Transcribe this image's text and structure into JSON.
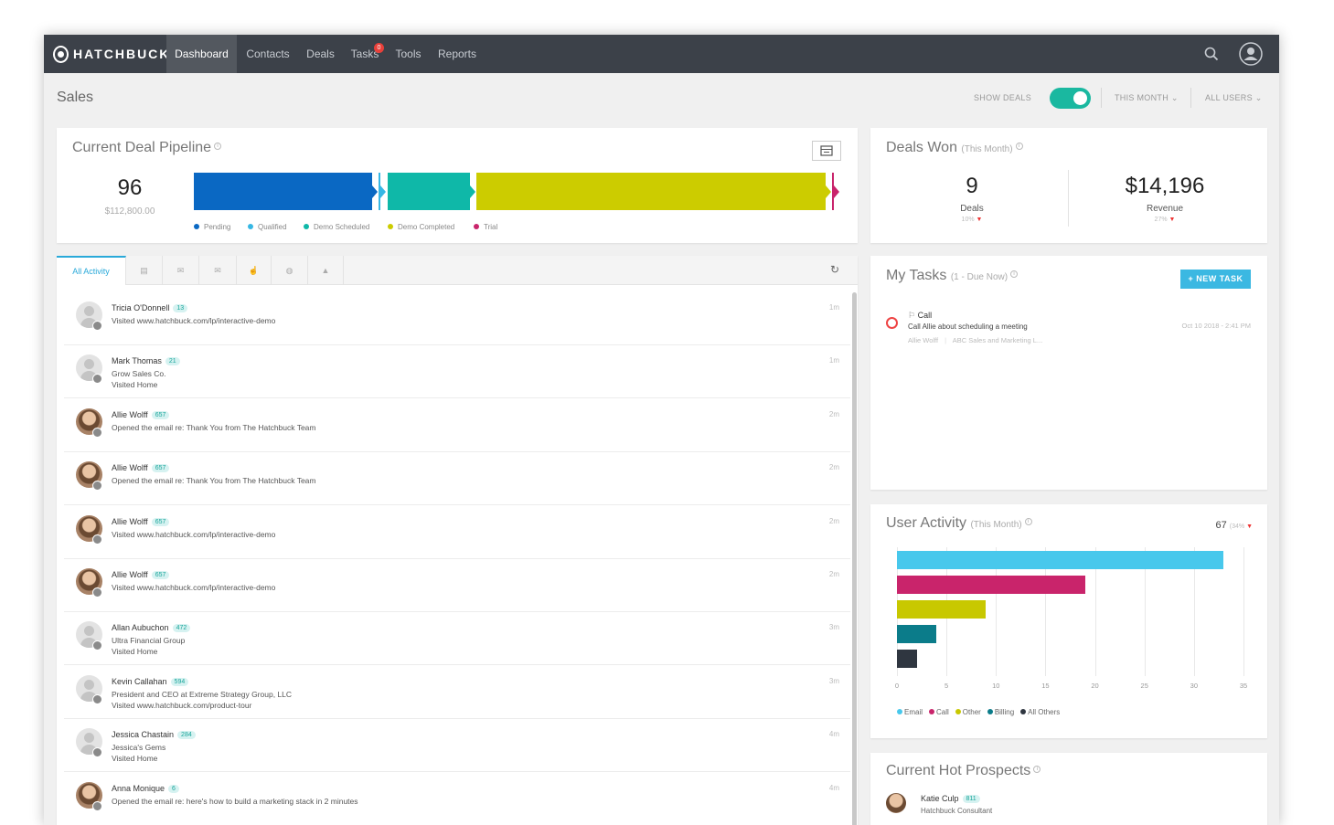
{
  "nav": {
    "brand": "HATCHBUCK",
    "items": [
      {
        "label": "Dashboard",
        "active": true
      },
      {
        "label": "Contacts",
        "active": false
      },
      {
        "label": "Deals",
        "active": false
      },
      {
        "label": "Tasks",
        "active": false
      },
      {
        "label": "Tools",
        "active": false
      },
      {
        "label": "Reports",
        "active": false
      }
    ],
    "task_badge": "0",
    "icons": [
      "search-icon",
      "user-avatar-icon"
    ]
  },
  "subheader": {
    "title": "Sales",
    "show_deals_label": "SHOW DEALS",
    "show_deals_on": true,
    "period": "THIS MONTH",
    "users": "ALL USERS"
  },
  "pipeline": {
    "title": "Current Deal Pipeline",
    "count": "96",
    "amount": "$112,800.00",
    "legend": [
      {
        "label": "Pending",
        "color": "#0a68c3"
      },
      {
        "label": "Qualified",
        "color": "#36b7e4"
      },
      {
        "label": "Demo Scheduled",
        "color": "#0fb8a8"
      },
      {
        "label": "Demo Completed",
        "color": "#cccc00"
      },
      {
        "label": "Trial",
        "color": "#c9246b"
      }
    ]
  },
  "deals_won": {
    "title": "Deals Won",
    "subtitle": "(This Month)",
    "deals_value": "9",
    "deals_label": "Deals",
    "deals_change": "10%",
    "revenue_value": "$14,196",
    "revenue_label": "Revenue",
    "revenue_change": "27%"
  },
  "activity": {
    "tab_active": "All Activity",
    "tab_icons": [
      "calendar-icon",
      "email-icon",
      "email-open-icon",
      "click-icon",
      "web-icon",
      "alert-icon"
    ],
    "rows": [
      {
        "name": "Tricia O'Donnell",
        "score": "13",
        "lines": [
          "Visited www.hatchbuck.com/lp/interactive-demo"
        ],
        "time": "1m",
        "avatar": "generic"
      },
      {
        "name": "Mark Thomas",
        "score": "21",
        "lines": [
          "Grow Sales Co.",
          "Visited Home"
        ],
        "time": "1m",
        "avatar": "generic"
      },
      {
        "name": "Allie Wolff",
        "score": "657",
        "lines": [
          "Opened the email re: Thank You from The Hatchbuck Team"
        ],
        "time": "2m",
        "avatar": "photo"
      },
      {
        "name": "Allie Wolff",
        "score": "657",
        "lines": [
          "Opened the email re: Thank You from The Hatchbuck Team"
        ],
        "time": "2m",
        "avatar": "photo"
      },
      {
        "name": "Allie Wolff",
        "score": "657",
        "lines": [
          "Visited www.hatchbuck.com/lp/interactive-demo"
        ],
        "time": "2m",
        "avatar": "photo"
      },
      {
        "name": "Allie Wolff",
        "score": "657",
        "lines": [
          "Visited www.hatchbuck.com/lp/interactive-demo"
        ],
        "time": "2m",
        "avatar": "photo"
      },
      {
        "name": "Allan Aubuchon",
        "score": "472",
        "lines": [
          "Ultra Financial Group",
          "Visited Home"
        ],
        "time": "3m",
        "avatar": "generic"
      },
      {
        "name": "Kevin Callahan",
        "score": "594",
        "lines": [
          "President and CEO at Extreme Strategy Group, LLC",
          "Visited www.hatchbuck.com/product-tour"
        ],
        "time": "3m",
        "avatar": "generic"
      },
      {
        "name": "Jessica Chastain",
        "score": "284",
        "lines": [
          "Jessica's Gems",
          "Visited Home"
        ],
        "time": "4m",
        "avatar": "generic"
      },
      {
        "name": "Anna Monique",
        "score": "6",
        "lines": [
          "Opened the email re: here's how to build a marketing stack in 2 minutes"
        ],
        "time": "4m",
        "avatar": "photo"
      }
    ]
  },
  "tasks": {
    "title": "My Tasks",
    "subtitle": "(1 - Due Now)",
    "new_task_label": "+ NEW TASK",
    "items": [
      {
        "type": "Call",
        "description": "Call Allie about scheduling a meeting",
        "due": "Oct 10 2018 - 2:41 PM",
        "contact": "Allie Wolff",
        "company": "ABC Sales and Marketing L..."
      }
    ]
  },
  "user_activity": {
    "title": "User Activity",
    "subtitle": "(This Month)",
    "total": "67",
    "change": "(34%"
  },
  "chart_data": {
    "type": "bar",
    "orientation": "horizontal",
    "categories": [
      "Email",
      "Call",
      "Other",
      "Billing",
      "All Others"
    ],
    "values": [
      33,
      19,
      9,
      4,
      2
    ],
    "colors": [
      "#48c8ec",
      "#c9246b",
      "#c8c800",
      "#0b7c8a",
      "#2f3640"
    ],
    "xlim": [
      0,
      35
    ],
    "xticks": [
      0,
      5,
      10,
      15,
      20,
      25,
      30,
      35
    ],
    "legend_position": "bottom-left",
    "grid": true
  },
  "hot_prospects": {
    "title": "Current Hot Prospects",
    "items": [
      {
        "name": "Katie Culp",
        "score": "811",
        "title": "Hatchbuck Consultant"
      }
    ]
  }
}
